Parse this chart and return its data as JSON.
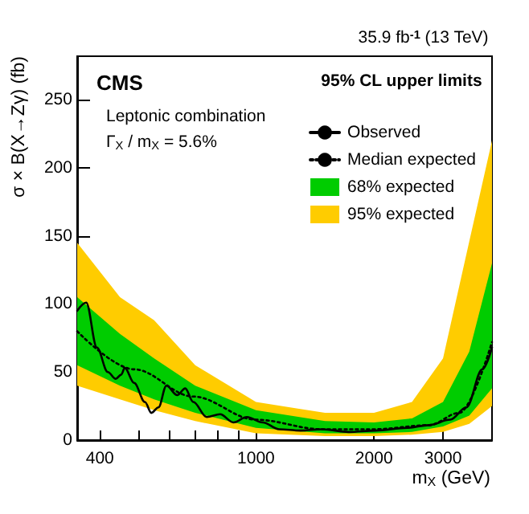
{
  "chart_data": {
    "type": "line",
    "subtitle": "35.9 fb$^{-1}$ (13 TeV)",
    "xlabel": "m$_{X}$ (GeV)",
    "ylabel": "σ × B(X→Zγ) (fb)",
    "legend_title": "95% CL upper limits",
    "annotations": [
      "CMS",
      "Leptonic combination",
      "Γ$_{X}$ / m$_{X}$ = 5.6%"
    ],
    "log": "x",
    "xlim": [
      350,
      4000
    ],
    "ylim": [
      0,
      282
    ],
    "xticks": [
      400,
      {
        "value": 500,
        "label": null
      },
      {
        "value": 600,
        "label": null
      },
      {
        "value": 700,
        "label": null
      },
      {
        "value": 800,
        "label": null
      },
      {
        "value": 900,
        "label": null
      },
      1000,
      2000,
      3000
    ],
    "yticks": [
      0,
      50,
      100,
      150,
      200,
      250
    ],
    "grid": false,
    "legend": "top right",
    "marker": "none",
    "series": [
      {
        "name": "Observed",
        "type": "line",
        "color": "#000000",
        "line_style": "solid",
        "x": [
          350,
          369,
          393,
          419,
          439,
          453,
          463,
          489,
          521,
          541,
          564,
          591,
          630,
          660,
          692,
          749,
          810,
          876,
          948,
          1041,
          1145,
          1299,
          1472,
          1725,
          2016,
          2430,
          2760,
          3130,
          3440,
          3780,
          4000
        ],
        "values": [
          95,
          101,
          68,
          50,
          45,
          48,
          53,
          42,
          28,
          20,
          24,
          40,
          33,
          38,
          28,
          17,
          19,
          13,
          17,
          13,
          8,
          7,
          8,
          6,
          7,
          9,
          11,
          15,
          24,
          52,
          68
        ]
      },
      {
        "name": "Median expected",
        "type": "line",
        "color": "#000000",
        "line_style": "dotted",
        "x": [
          350,
          489,
          692,
          1000,
          1472,
          2016,
          2760,
          3300,
          4000
        ],
        "values": [
          80,
          52,
          32,
          15,
          8,
          8,
          11,
          20,
          72
        ]
      },
      {
        "name": "68% expected",
        "type": "line",
        "color": "#00cc00",
        "x": [
          350,
          450,
          550,
          700,
          1000,
          1500,
          2000,
          2500,
          3000,
          3500,
          4000
        ],
        "values": [
          null,
          null,
          null,
          null,
          null,
          null,
          null,
          null,
          null,
          null,
          null
        ],
        "lower": [
          55,
          40,
          30,
          20,
          9,
          5,
          5,
          6,
          10,
          18,
          38
        ],
        "upper": [
          105,
          78,
          60,
          40,
          22,
          14,
          13,
          16,
          28,
          65,
          130
        ]
      },
      {
        "name": "95% expected",
        "type": "line",
        "color": "#ffcc00",
        "x": [
          350,
          450,
          550,
          700,
          1000,
          1500,
          2000,
          2500,
          3000,
          3500,
          4000
        ],
        "values": [
          null,
          null,
          null,
          null,
          null,
          null,
          null,
          null,
          null,
          null,
          null
        ],
        "lower": [
          40,
          30,
          22,
          14,
          5,
          3,
          3,
          4,
          6,
          12,
          25
        ],
        "upper": [
          145,
          105,
          88,
          55,
          28,
          20,
          20,
          28,
          60,
          146,
          220
        ]
      }
    ]
  }
}
